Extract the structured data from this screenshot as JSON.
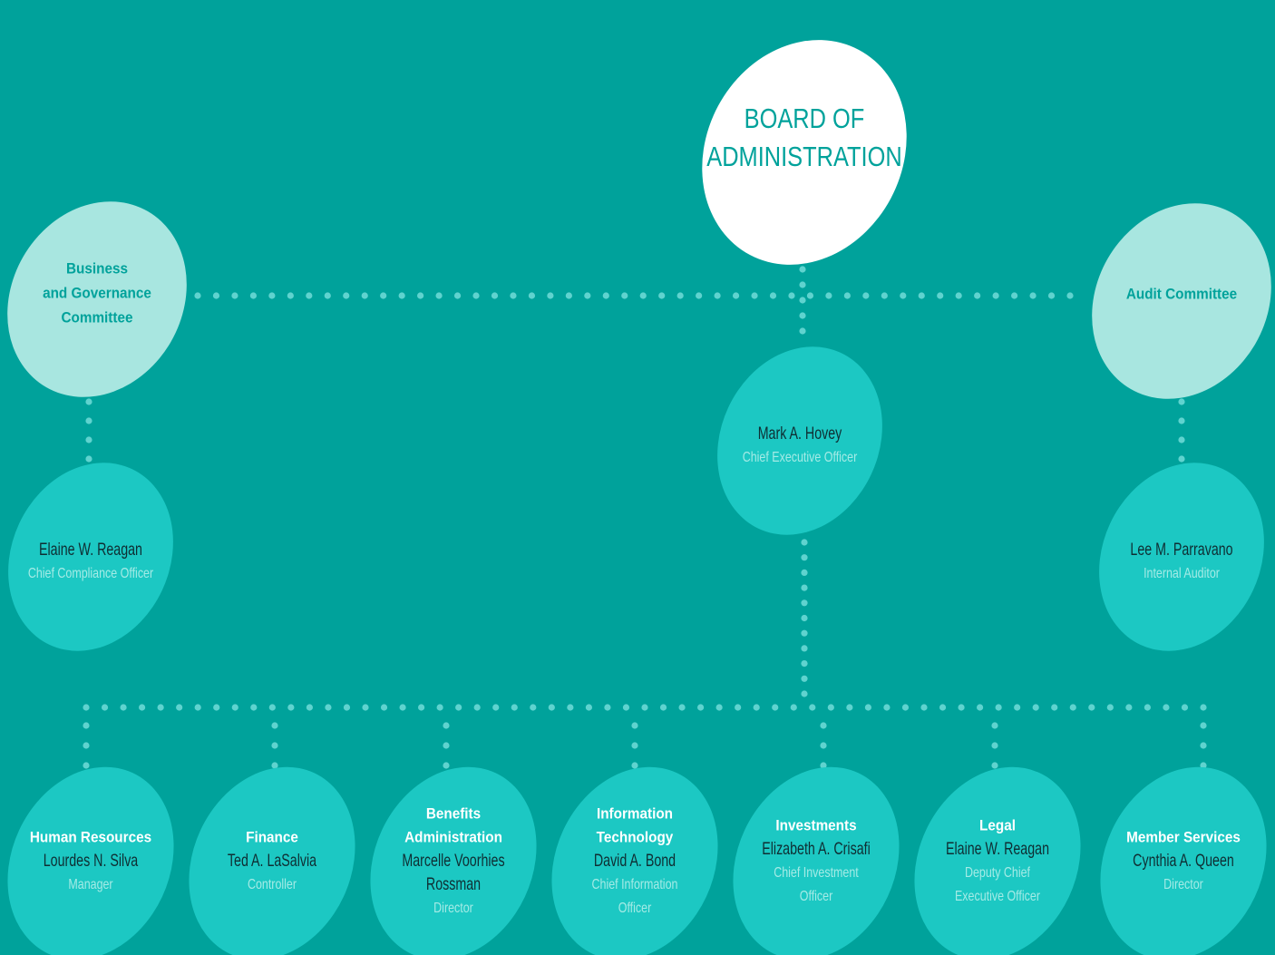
{
  "board": {
    "title": [
      "BOARD OF",
      "ADMINISTRATION"
    ]
  },
  "committees": [
    {
      "title": [
        "Business",
        "and Governance",
        "Committee"
      ]
    },
    {
      "title": [
        "Audit Committee"
      ]
    }
  ],
  "officers": [
    {
      "name": [
        "Elaine W. Reagan"
      ],
      "role": [
        "Chief Compliance Officer"
      ]
    },
    {
      "name": [
        "Mark A. Hovey"
      ],
      "role": [
        "Chief Executive Officer"
      ]
    },
    {
      "name": [
        "Lee M. Parravano"
      ],
      "role": [
        "Internal Auditor"
      ]
    }
  ],
  "divisions": [
    {
      "title": [
        "Human Resources"
      ],
      "name": [
        "Lourdes N. Silva"
      ],
      "role": [
        "Manager"
      ]
    },
    {
      "title": [
        "Finance"
      ],
      "name": [
        "Ted A. LaSalvia"
      ],
      "role": [
        "Controller"
      ]
    },
    {
      "title": [
        "Benefits",
        "Administration"
      ],
      "name": [
        "Marcelle Voorhies",
        "Rossman"
      ],
      "role": [
        "Director"
      ]
    },
    {
      "title": [
        "Information",
        "Technology"
      ],
      "name": [
        "David A. Bond"
      ],
      "role": [
        "Chief Information",
        "Officer"
      ]
    },
    {
      "title": [
        "Investments"
      ],
      "name": [
        "Elizabeth A. Crisafi"
      ],
      "role": [
        "Chief Investment",
        "Officer"
      ]
    },
    {
      "title": [
        "Legal"
      ],
      "name": [
        "Elaine W. Reagan"
      ],
      "role": [
        "Deputy Chief",
        "Executive Officer"
      ]
    },
    {
      "title": [
        "Member Services"
      ],
      "name": [
        "Cynthia A. Queen"
      ],
      "role": [
        "Director"
      ]
    }
  ]
}
